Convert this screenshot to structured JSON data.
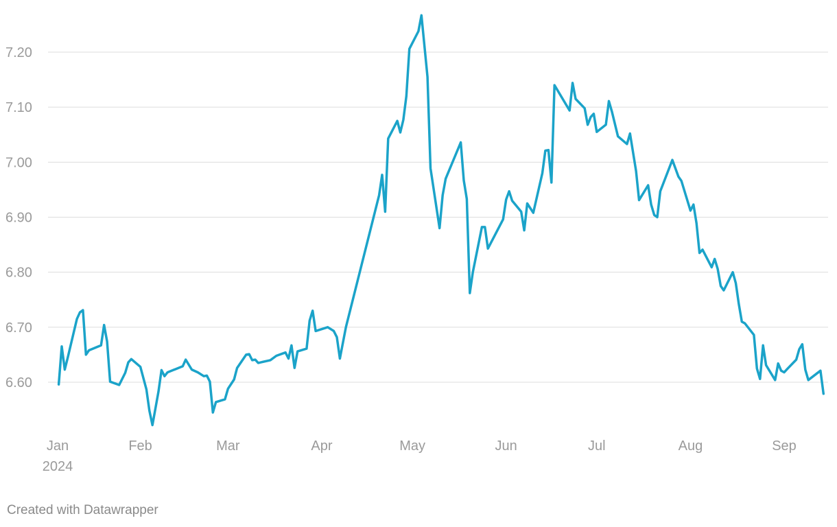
{
  "credit": "Created with Datawrapper",
  "colors": {
    "line": "#1ba3c9",
    "grid": "#dcdcdc",
    "tick": "#9a9a9a"
  },
  "chart_data": {
    "type": "line",
    "title": "",
    "xlabel": "",
    "ylabel": "",
    "grid": true,
    "ylim": [
      6.51,
      7.27
    ],
    "xlim": [
      "2024-01-01",
      "2024-09-11"
    ],
    "y_ticks": [
      {
        "value": 6.6,
        "label": "6.60"
      },
      {
        "value": 6.7,
        "label": "6.70"
      },
      {
        "value": 6.8,
        "label": "6.80"
      },
      {
        "value": 6.9,
        "label": "6.90"
      },
      {
        "value": 7.0,
        "label": "7.00"
      },
      {
        "value": 7.1,
        "label": "7.10"
      },
      {
        "value": 7.2,
        "label": "7.20"
      }
    ],
    "x_ticks": [
      {
        "date": "2024-01-01",
        "label": "Jan",
        "sublabel": "2024"
      },
      {
        "date": "2024-02-01",
        "label": "Feb"
      },
      {
        "date": "2024-03-01",
        "label": "Mar"
      },
      {
        "date": "2024-04-01",
        "label": "Apr"
      },
      {
        "date": "2024-05-01",
        "label": "May"
      },
      {
        "date": "2024-06-01",
        "label": "Jun"
      },
      {
        "date": "2024-07-01",
        "label": "Jul"
      },
      {
        "date": "2024-08-01",
        "label": "Aug"
      },
      {
        "date": "2024-09-01",
        "label": "Sep"
      }
    ],
    "series": [
      {
        "points": [
          [
            "2024-01-05",
            6.596
          ],
          [
            "2024-01-06",
            6.665
          ],
          [
            "2024-01-07",
            6.623
          ],
          [
            "2024-01-08",
            6.645
          ],
          [
            "2024-01-11",
            6.715
          ],
          [
            "2024-01-12",
            6.727
          ],
          [
            "2024-01-13",
            6.731
          ],
          [
            "2024-01-14",
            6.65
          ],
          [
            "2024-01-15",
            6.658
          ],
          [
            "2024-01-19",
            6.667
          ],
          [
            "2024-01-20",
            6.704
          ],
          [
            "2024-01-21",
            6.674
          ],
          [
            "2024-01-22",
            6.601
          ],
          [
            "2024-01-25",
            6.595
          ],
          [
            "2024-01-27",
            6.617
          ],
          [
            "2024-01-28",
            6.636
          ],
          [
            "2024-01-29",
            6.642
          ],
          [
            "2024-02-01",
            6.628
          ],
          [
            "2024-02-03",
            6.587
          ],
          [
            "2024-02-04",
            6.548
          ],
          [
            "2024-02-05",
            6.522
          ],
          [
            "2024-02-07",
            6.583
          ],
          [
            "2024-02-08",
            6.622
          ],
          [
            "2024-02-09",
            6.611
          ],
          [
            "2024-02-10",
            6.618
          ],
          [
            "2024-02-15",
            6.629
          ],
          [
            "2024-02-16",
            6.641
          ],
          [
            "2024-02-18",
            6.623
          ],
          [
            "2024-02-20",
            6.618
          ],
          [
            "2024-02-22",
            6.611
          ],
          [
            "2024-02-23",
            6.612
          ],
          [
            "2024-02-24",
            6.601
          ],
          [
            "2024-02-25",
            6.545
          ],
          [
            "2024-02-26",
            6.564
          ],
          [
            "2024-02-29",
            6.569
          ],
          [
            "2024-03-01",
            6.588
          ],
          [
            "2024-03-03",
            6.605
          ],
          [
            "2024-03-04",
            6.626
          ],
          [
            "2024-03-07",
            6.65
          ],
          [
            "2024-03-08",
            6.651
          ],
          [
            "2024-03-09",
            6.64
          ],
          [
            "2024-03-10",
            6.641
          ],
          [
            "2024-03-11",
            6.635
          ],
          [
            "2024-03-15",
            6.64
          ],
          [
            "2024-03-17",
            6.648
          ],
          [
            "2024-03-20",
            6.654
          ],
          [
            "2024-03-21",
            6.643
          ],
          [
            "2024-03-22",
            6.667
          ],
          [
            "2024-03-23",
            6.626
          ],
          [
            "2024-03-24",
            6.656
          ],
          [
            "2024-03-27",
            6.661
          ],
          [
            "2024-03-28",
            6.712
          ],
          [
            "2024-03-29",
            6.73
          ],
          [
            "2024-03-30",
            6.693
          ],
          [
            "2024-04-03",
            6.7
          ],
          [
            "2024-04-05",
            6.693
          ],
          [
            "2024-04-06",
            6.682
          ],
          [
            "2024-04-07",
            6.643
          ],
          [
            "2024-04-09",
            6.7
          ],
          [
            "2024-04-20",
            6.94
          ],
          [
            "2024-04-21",
            6.977
          ],
          [
            "2024-04-22",
            6.91
          ],
          [
            "2024-04-23",
            7.043
          ],
          [
            "2024-04-26",
            7.075
          ],
          [
            "2024-04-27",
            7.054
          ],
          [
            "2024-04-28",
            7.077
          ],
          [
            "2024-04-29",
            7.12
          ],
          [
            "2024-04-30",
            7.206
          ],
          [
            "2024-05-03",
            7.238
          ],
          [
            "2024-05-04",
            7.267
          ],
          [
            "2024-05-06",
            7.155
          ],
          [
            "2024-05-07",
            6.989
          ],
          [
            "2024-05-10",
            6.88
          ],
          [
            "2024-05-11",
            6.94
          ],
          [
            "2024-05-12",
            6.97
          ],
          [
            "2024-05-17",
            7.036
          ],
          [
            "2024-05-18",
            6.967
          ],
          [
            "2024-05-19",
            6.933
          ],
          [
            "2024-05-20",
            6.762
          ],
          [
            "2024-05-21",
            6.8
          ],
          [
            "2024-05-24",
            6.882
          ],
          [
            "2024-05-25",
            6.882
          ],
          [
            "2024-05-26",
            6.843
          ],
          [
            "2024-05-31",
            6.896
          ],
          [
            "2024-06-01",
            6.932
          ],
          [
            "2024-06-02",
            6.947
          ],
          [
            "2024-06-03",
            6.93
          ],
          [
            "2024-06-06",
            6.91
          ],
          [
            "2024-06-07",
            6.876
          ],
          [
            "2024-06-08",
            6.925
          ],
          [
            "2024-06-10",
            6.908
          ],
          [
            "2024-06-13",
            6.98
          ],
          [
            "2024-06-14",
            7.021
          ],
          [
            "2024-06-15",
            7.022
          ],
          [
            "2024-06-16",
            6.963
          ],
          [
            "2024-06-17",
            7.14
          ],
          [
            "2024-06-22",
            7.094
          ],
          [
            "2024-06-23",
            7.144
          ],
          [
            "2024-06-24",
            7.115
          ],
          [
            "2024-06-27",
            7.098
          ],
          [
            "2024-06-28",
            7.068
          ],
          [
            "2024-06-29",
            7.082
          ],
          [
            "2024-06-30",
            7.088
          ],
          [
            "2024-07-01",
            7.055
          ],
          [
            "2024-07-04",
            7.068
          ],
          [
            "2024-07-05",
            7.111
          ],
          [
            "2024-07-06",
            7.092
          ],
          [
            "2024-07-08",
            7.047
          ],
          [
            "2024-07-11",
            7.033
          ],
          [
            "2024-07-12",
            7.052
          ],
          [
            "2024-07-14",
            6.984
          ],
          [
            "2024-07-15",
            6.931
          ],
          [
            "2024-07-18",
            6.958
          ],
          [
            "2024-07-19",
            6.923
          ],
          [
            "2024-07-20",
            6.904
          ],
          [
            "2024-07-21",
            6.9
          ],
          [
            "2024-07-22",
            6.947
          ],
          [
            "2024-07-26",
            7.004
          ],
          [
            "2024-07-28",
            6.974
          ],
          [
            "2024-07-29",
            6.966
          ],
          [
            "2024-08-01",
            6.912
          ],
          [
            "2024-08-02",
            6.923
          ],
          [
            "2024-08-03",
            6.889
          ],
          [
            "2024-08-04",
            6.835
          ],
          [
            "2024-08-05",
            6.841
          ],
          [
            "2024-08-08",
            6.809
          ],
          [
            "2024-08-09",
            6.824
          ],
          [
            "2024-08-10",
            6.806
          ],
          [
            "2024-08-11",
            6.775
          ],
          [
            "2024-08-12",
            6.767
          ],
          [
            "2024-08-15",
            6.8
          ],
          [
            "2024-08-16",
            6.78
          ],
          [
            "2024-08-17",
            6.742
          ],
          [
            "2024-08-18",
            6.71
          ],
          [
            "2024-08-19",
            6.707
          ],
          [
            "2024-08-22",
            6.686
          ],
          [
            "2024-08-23",
            6.625
          ],
          [
            "2024-08-24",
            6.606
          ],
          [
            "2024-08-25",
            6.667
          ],
          [
            "2024-08-26",
            6.631
          ],
          [
            "2024-08-29",
            6.604
          ],
          [
            "2024-08-30",
            6.634
          ],
          [
            "2024-08-31",
            6.621
          ],
          [
            "2024-09-01",
            6.618
          ],
          [
            "2024-09-02",
            6.624
          ],
          [
            "2024-09-05",
            6.641
          ],
          [
            "2024-09-06",
            6.66
          ],
          [
            "2024-09-07",
            6.669
          ],
          [
            "2024-09-08",
            6.623
          ],
          [
            "2024-09-09",
            6.604
          ],
          [
            "2024-09-13",
            6.621
          ],
          [
            "2024-09-14",
            6.579
          ]
        ]
      }
    ]
  }
}
